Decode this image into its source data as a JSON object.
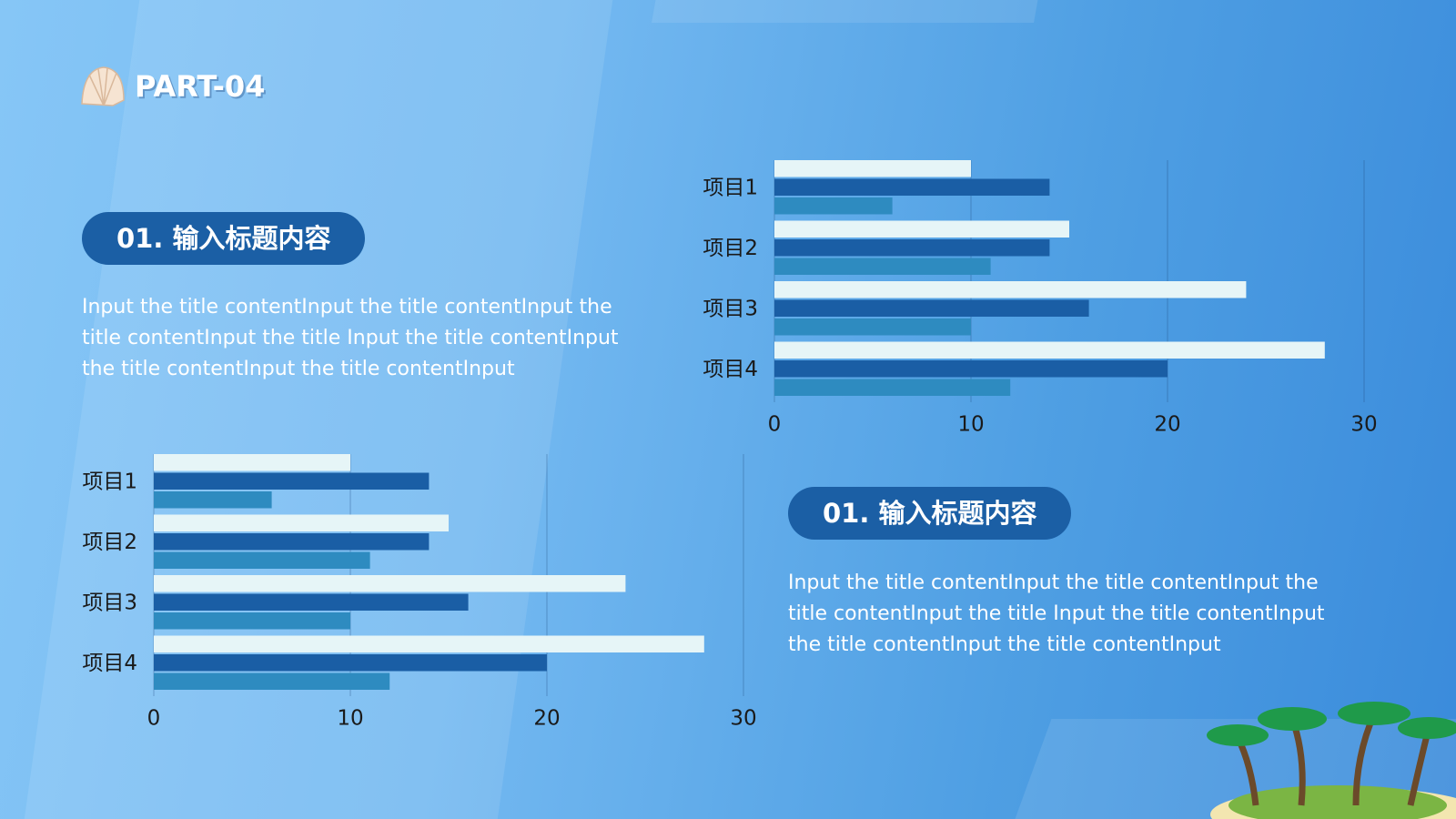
{
  "header": {
    "title": "PART-04"
  },
  "sections": [
    {
      "heading": "01. 输入标题内容",
      "text": "Input the title contentInput the title contentInput the title contentInput the title Input the title contentInput the title contentInput the title contentInput"
    },
    {
      "heading": "01. 输入标题内容",
      "text": "Input the title contentInput the title contentInput the title contentInput the title Input the title contentInput the title contentInput the title contentInput"
    }
  ],
  "chart_data": [
    {
      "type": "hbar",
      "categories": [
        "项目1",
        "项目2",
        "项目3",
        "项目4"
      ],
      "series": [
        {
          "color": "#e6f5f7",
          "values": [
            10,
            15,
            24,
            28
          ]
        },
        {
          "color": "#1a5ea5",
          "values": [
            14,
            14,
            16,
            20
          ]
        },
        {
          "color": "#2e8bc0",
          "values": [
            6,
            11,
            10,
            12
          ]
        }
      ],
      "xlim": [
        0,
        30
      ],
      "xticks": [
        0,
        10,
        20,
        30
      ],
      "grid": true
    },
    {
      "type": "hbar",
      "categories": [
        "项目1",
        "项目2",
        "项目3",
        "项目4"
      ],
      "series": [
        {
          "color": "#e6f5f7",
          "values": [
            10,
            15,
            24,
            28
          ]
        },
        {
          "color": "#1a5ea5",
          "values": [
            14,
            14,
            16,
            20
          ]
        },
        {
          "color": "#2e8bc0",
          "values": [
            6,
            11,
            10,
            12
          ]
        }
      ],
      "xlim": [
        0,
        30
      ],
      "xticks": [
        0,
        10,
        20,
        30
      ],
      "grid": true
    }
  ]
}
